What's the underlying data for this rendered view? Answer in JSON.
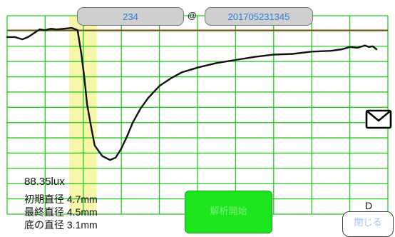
{
  "header": {
    "id_value": "234",
    "at_symbol": "@",
    "datetime_value": "201705231345"
  },
  "readings": {
    "lux": "88.35lux",
    "initial_diameter": "初期直径 4.7mm",
    "final_diameter": "最終直径 4.5mm",
    "min_diameter": "底の直径 3.1mm"
  },
  "buttons": {
    "start_analysis": "解析開始",
    "close": "閉じる"
  },
  "marker_label": "D",
  "icons": {
    "mail": "mail-icon"
  },
  "colors": {
    "grid": "#22c922",
    "reference_line": "#b03030",
    "highlight": "#f7f49a",
    "trace": "#111111",
    "button_green": "#1de51d",
    "pill_text": "#2f7de0"
  },
  "chart_data": {
    "type": "line",
    "title": "",
    "xlabel": "",
    "ylabel": "",
    "grid": true,
    "x_range": [
      0,
      100
    ],
    "y_range": [
      0,
      13
    ],
    "reference_line_y": 12.05,
    "highlight_x_range": [
      16.3,
      23.5
    ],
    "series": [
      {
        "x": [
          0,
          2,
          4,
          5.5,
          7,
          8.5,
          10,
          11.5,
          13,
          15,
          17,
          18.5,
          19.5,
          20.3,
          21,
          22,
          23,
          25,
          27,
          28.5,
          30,
          31.5,
          33,
          35,
          37,
          40,
          43,
          46,
          50,
          55,
          60,
          65,
          70,
          75,
          80,
          85,
          88,
          90,
          92,
          94,
          95,
          96,
          97
        ],
        "y": [
          11.6,
          11.6,
          11.45,
          11.6,
          11.85,
          12.1,
          12.05,
          12.15,
          12.1,
          12.15,
          12.2,
          12.05,
          10.5,
          8.9,
          7.2,
          5.8,
          4.5,
          3.8,
          3.55,
          3.7,
          4.3,
          5.1,
          6.0,
          6.9,
          7.6,
          8.4,
          8.9,
          9.3,
          9.6,
          9.9,
          10.1,
          10.3,
          10.45,
          10.5,
          10.65,
          10.7,
          10.8,
          10.95,
          10.9,
          11.05,
          10.95,
          11.0,
          10.8
        ]
      }
    ]
  }
}
